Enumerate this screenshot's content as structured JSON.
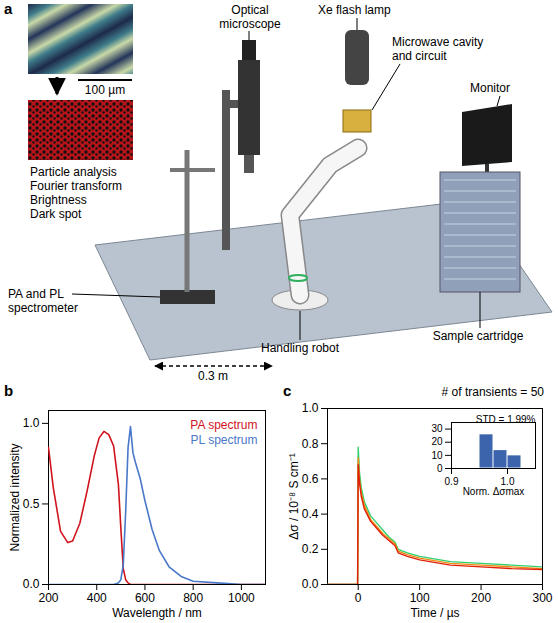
{
  "diagram": {
    "panel": "a",
    "scale_bar": "100 µm",
    "analysis": [
      "Particle analysis",
      "Fourier transform",
      "Brightness",
      "Dark spot"
    ],
    "labels": {
      "microscope": "Optical microscope",
      "lamp": "Xe flash lamp",
      "cavity": "Microwave cavity and circuit",
      "monitor": "Monitor",
      "cartridge": "Sample cartridge",
      "robot": "Handling robot",
      "spectrometer": "PA and PL spectrometer"
    },
    "dimension": "0.3 m"
  },
  "chart_data": [
    {
      "panel": "b",
      "type": "line",
      "x_label": "Wavelength / nm",
      "y_label": "Normalized intensity",
      "x": [
        200,
        220,
        250,
        280,
        300,
        330,
        360,
        390,
        410,
        430,
        450,
        470,
        490,
        500,
        510,
        520,
        530,
        540,
        550,
        560,
        580,
        600,
        630,
        660,
        700,
        750,
        800,
        900,
        1000,
        1100
      ],
      "series": [
        {
          "name": "PA spectrum",
          "color": "#d0141e",
          "values": [
            0.85,
            0.6,
            0.33,
            0.26,
            0.27,
            0.38,
            0.58,
            0.8,
            0.91,
            0.95,
            0.93,
            0.86,
            0.62,
            0.35,
            0.1,
            0.03,
            0.01,
            0,
            0,
            0,
            0,
            0,
            0,
            0,
            0,
            0,
            0,
            0,
            0,
            0
          ]
        },
        {
          "name": "PL spectrum",
          "color": "#4a78c8",
          "values": [
            0,
            0,
            0,
            0,
            0,
            0,
            0,
            0,
            0,
            0,
            0,
            0,
            0.01,
            0.03,
            0.12,
            0.45,
            0.85,
            0.98,
            0.82,
            0.76,
            0.66,
            0.52,
            0.34,
            0.21,
            0.11,
            0.05,
            0.02,
            0.01,
            0,
            0
          ]
        }
      ],
      "xlim": [
        200,
        1100
      ],
      "xticks": [
        200,
        400,
        600,
        800,
        1000
      ],
      "ylim": [
        0,
        1.08
      ],
      "yticks": [
        {
          "value": 0,
          "label": "0.0"
        },
        {
          "value": 0.5,
          "label": "0.5"
        },
        {
          "value": 1,
          "label": "1.0"
        }
      ],
      "legend": "top-right",
      "grid": false
    },
    {
      "panel": "c",
      "type": "line",
      "title": "# of transients = 50",
      "x_label": "Time / µs",
      "y_label": "Δσ / 10⁻⁸ S cm⁻¹",
      "x": [
        -50,
        -1,
        0,
        2,
        5,
        10,
        20,
        30,
        40,
        50,
        60,
        65,
        80,
        100,
        150,
        200,
        250,
        300
      ],
      "series": [
        {
          "color": "#30d070",
          "values": [
            0,
            0,
            0.78,
            0.64,
            0.55,
            0.47,
            0.39,
            0.35,
            0.31,
            0.27,
            0.24,
            0.2,
            0.18,
            0.16,
            0.13,
            0.12,
            0.11,
            0.1
          ]
        },
        {
          "color": "#f08a10",
          "values": [
            0,
            0,
            0.72,
            0.6,
            0.52,
            0.45,
            0.37,
            0.33,
            0.29,
            0.26,
            0.23,
            0.19,
            0.17,
            0.15,
            0.12,
            0.11,
            0.1,
            0.09
          ]
        },
        {
          "color": "#e0200a",
          "values": [
            0,
            0,
            0.68,
            0.58,
            0.5,
            0.43,
            0.36,
            0.32,
            0.28,
            0.25,
            0.22,
            0.18,
            0.16,
            0.14,
            0.11,
            0.1,
            0.09,
            0.085
          ]
        }
      ],
      "xlim": [
        -50,
        300
      ],
      "xticks": [
        0,
        100,
        200,
        300
      ],
      "ylim": [
        0,
        1
      ],
      "yticks": [
        {
          "value": 0,
          "label": "0.0"
        },
        {
          "value": 0.2,
          "label": "0.2"
        },
        {
          "value": 0.4,
          "label": "0.4"
        },
        {
          "value": 0.6,
          "label": "0.6"
        },
        {
          "value": 0.8,
          "label": "0.8"
        },
        {
          "value": 1,
          "label": "1.0"
        }
      ],
      "grid": false,
      "inset": {
        "type": "histogram",
        "x_label": "Norm. Δσmax",
        "annotation": "STD = 1.99%",
        "bins": [
          0.95,
          0.975,
          1.0,
          1.025
        ],
        "values": [
          26,
          14,
          10
        ],
        "color": "#3b64ad",
        "xlim": [
          0.9,
          1.05
        ],
        "xticks": [
          0.9,
          {
            "value": 1,
            "label": "1.0"
          }
        ],
        "ylim": [
          0,
          35
        ],
        "yticks": [
          0,
          10,
          20,
          30
        ]
      }
    }
  ]
}
